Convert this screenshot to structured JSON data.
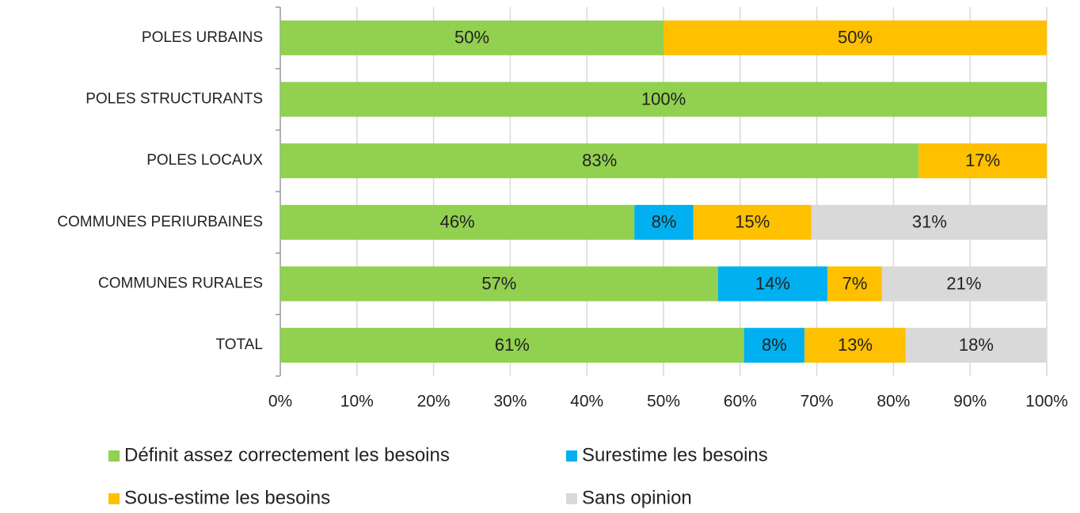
{
  "chart_data": {
    "type": "stacked_barh",
    "categories": [
      "POLES URBAINS",
      "POLES STRUCTURANTS",
      "POLES LOCAUX",
      "COMMUNES PERIURBAINES",
      "COMMUNES RURALES",
      "TOTAL"
    ],
    "series": [
      {
        "name": "Définit assez correctement les besoins",
        "color": "#92d050",
        "values": [
          50,
          100,
          83.3,
          46.2,
          57.1,
          60.5
        ],
        "value_labels": [
          "50%",
          "100%",
          "83%",
          "46%",
          "57%",
          "61%"
        ]
      },
      {
        "name": "Surestime les besoins",
        "color": "#00b0f0",
        "values": [
          null,
          null,
          null,
          7.7,
          14.3,
          7.9
        ],
        "value_labels": [
          null,
          null,
          null,
          "8%",
          "14%",
          "8%"
        ]
      },
      {
        "name": "Sous-estime les besoins",
        "color": "#ffc000",
        "values": [
          50,
          null,
          16.7,
          15.4,
          7.1,
          13.2
        ],
        "value_labels": [
          "50%",
          null,
          "17%",
          "15%",
          "7%",
          "13%"
        ]
      },
      {
        "name": "Sans opinion",
        "color": "#d9d9d9",
        "values": [
          null,
          null,
          null,
          30.8,
          21.4,
          18.4
        ],
        "value_labels": [
          null,
          null,
          null,
          "31%",
          "21%",
          "18%"
        ]
      }
    ],
    "xlim": [
      0,
      100
    ],
    "xticks": [
      {
        "value": 0,
        "label": "0%"
      },
      {
        "value": 10,
        "label": "10%"
      },
      {
        "value": 20,
        "label": "20%"
      },
      {
        "value": 30,
        "label": "30%"
      },
      {
        "value": 40,
        "label": "40%"
      },
      {
        "value": 50,
        "label": "50%"
      },
      {
        "value": 60,
        "label": "60%"
      },
      {
        "value": 70,
        "label": "70%"
      },
      {
        "value": 80,
        "label": "80%"
      },
      {
        "value": 90,
        "label": "90%"
      },
      {
        "value": 100,
        "label": "100%"
      }
    ],
    "grid": true,
    "legend": "bottom"
  }
}
